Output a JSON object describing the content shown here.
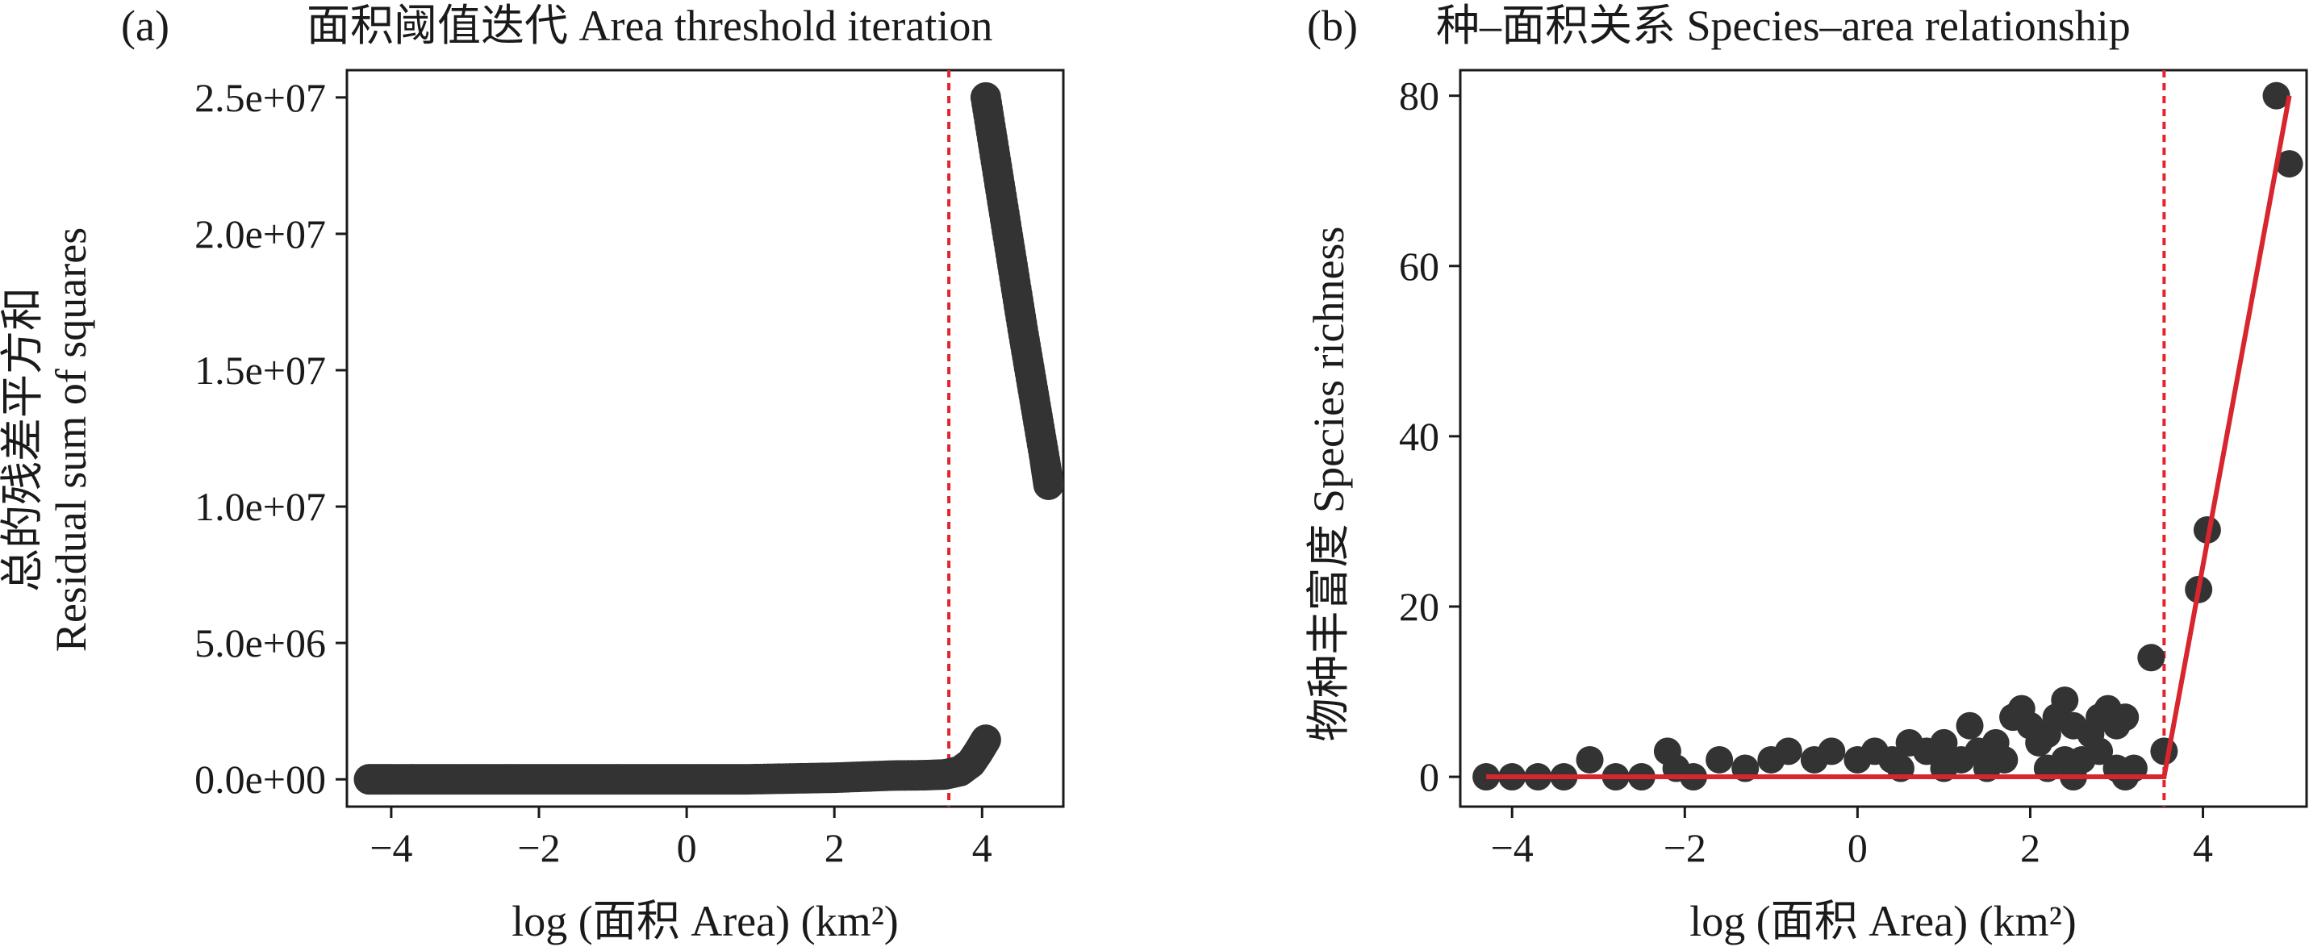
{
  "panels": [
    {
      "letter": "(a)",
      "title": "面积阈值迭代 Area threshold iteration"
    },
    {
      "letter": "(b)",
      "title": "种–面积关系 Species–area relationship"
    }
  ],
  "colors": {
    "points": "#333333",
    "threshold": "#e3242b",
    "fit": "#d7262e",
    "axis": "#1a1a1a"
  },
  "chart_data": [
    {
      "type": "scatter",
      "title": "面积阈值迭代 Area threshold iteration",
      "xlabel": "log (面积 Area) (km²)",
      "ylabel": [
        "总的残差平方和",
        "Residual sum of squares"
      ],
      "xlim": [
        -4.6,
        5.1
      ],
      "ylim": [
        -1000000,
        26000000
      ],
      "xticks": [
        -4,
        -2,
        0,
        2,
        4
      ],
      "xtick_labels": [
        "−4",
        "−2",
        "0",
        "2",
        "4"
      ],
      "yticks": [
        0,
        5000000,
        10000000,
        15000000,
        20000000,
        25000000
      ],
      "ytick_labels": [
        "0.0e+00",
        "5.0e+06",
        "1.0e+07",
        "1.5e+07",
        "2.0e+07",
        "2.5e+07"
      ],
      "threshold_x": 3.55,
      "grid": false,
      "series": [
        {
          "x": [
            -4.3,
            -4.0,
            -3.6,
            -3.2,
            -2.8,
            -2.4,
            -2.0,
            -1.6,
            -1.2,
            -0.8,
            -0.4,
            0.0,
            0.4,
            0.8,
            1.2,
            1.6,
            2.0,
            2.4,
            2.8,
            3.2,
            3.5,
            3.7,
            3.85,
            3.95,
            4.05
          ],
          "y": [
            0,
            0,
            0,
            0,
            0,
            0,
            0,
            0,
            0,
            0,
            0,
            0,
            0,
            0,
            20000,
            40000,
            60000,
            100000,
            140000,
            150000,
            180000,
            300000,
            600000,
            1000000,
            1450000
          ]
        },
        {
          "x": [
            4.05,
            4.15,
            4.25,
            4.35,
            4.45,
            4.55,
            4.65,
            4.75,
            4.85,
            4.9
          ],
          "y": [
            25000000,
            23300000,
            21600000,
            19900000,
            18200000,
            16500000,
            14900000,
            13300000,
            11700000,
            10800000
          ]
        }
      ]
    },
    {
      "type": "scatter",
      "title": "种–面积关系 Species–area relationship",
      "xlabel": "log (面积 Area) (km²)",
      "ylabel": [
        "物种丰富度 Species richness"
      ],
      "xlim": [
        -4.6,
        5.2
      ],
      "ylim": [
        -3.5,
        83
      ],
      "xticks": [
        -4,
        -2,
        0,
        2,
        4
      ],
      "xtick_labels": [
        "−4",
        "−2",
        "0",
        "2",
        "4"
      ],
      "yticks": [
        0,
        20,
        40,
        60,
        80
      ],
      "ytick_labels": [
        "0",
        "20",
        "40",
        "60",
        "80"
      ],
      "threshold_x": 3.55,
      "grid": false,
      "series": [
        {
          "x": [
            -4.3,
            -4.0,
            -3.7,
            -3.4,
            -3.1,
            -2.8,
            -2.5,
            -2.2,
            -2.1,
            -1.9,
            -1.6,
            -1.3,
            -1.0,
            -0.8,
            -0.5,
            -0.3,
            0.0,
            0.2,
            0.4,
            0.6,
            0.8,
            1.0,
            1.2,
            1.3,
            1.4,
            1.6,
            1.8,
            1.9,
            2.0,
            2.1,
            2.2,
            2.3,
            2.4,
            2.5,
            2.6,
            2.7,
            2.8,
            2.9,
            3.0,
            3.1,
            3.2,
            3.4,
            3.55,
            3.95,
            4.05,
            4.85,
            5.0,
            0.5,
            1.0,
            1.5,
            1.7,
            2.2,
            2.4,
            2.5,
            2.8,
            3.0,
            3.1
          ],
          "y": [
            0,
            0,
            0,
            0,
            2,
            0,
            0,
            3,
            1,
            0,
            2,
            1,
            2,
            3,
            2,
            3,
            2,
            3,
            2,
            4,
            3,
            4,
            2,
            6,
            3,
            4,
            7,
            8,
            6,
            4,
            5,
            7,
            9,
            6,
            2,
            5,
            7,
            8,
            6,
            7,
            1,
            14,
            3,
            22,
            29,
            80,
            72,
            1,
            1,
            1,
            2,
            1,
            2,
            0,
            3,
            1,
            0
          ]
        }
      ],
      "fit_line": {
        "x": [
          -4.3,
          3.4,
          3.55,
          5.0
        ],
        "y": [
          0,
          0,
          0,
          80
        ]
      }
    }
  ]
}
